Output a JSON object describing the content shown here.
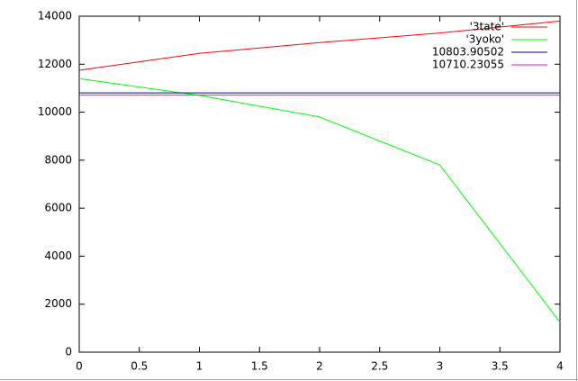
{
  "chart_data": {
    "type": "line",
    "series": [
      {
        "name": "'3tate'",
        "color": "#ff0000",
        "x": [
          0,
          1,
          2,
          3,
          4
        ],
        "values": [
          11750,
          12450,
          12900,
          13300,
          13800
        ]
      },
      {
        "name": "'3yoko'",
        "color": "#00ff00",
        "x": [
          0,
          1,
          2,
          3,
          4
        ],
        "values": [
          11400,
          10700,
          9800,
          7800,
          1250
        ]
      },
      {
        "name": "10803.90502",
        "color": "#0000a0",
        "x": [
          0,
          4
        ],
        "values": [
          10803.90502,
          10803.90502
        ]
      },
      {
        "name": "10710.23055",
        "color": "#ff00ff",
        "x": [
          0,
          4
        ],
        "values": [
          10710.23055,
          10710.23055
        ]
      }
    ],
    "xlim": [
      0,
      4
    ],
    "xticks": [
      0,
      0.5,
      1,
      1.5,
      2,
      2.5,
      3,
      3.5,
      4
    ],
    "ylim": [
      0,
      14000
    ],
    "yticks": [
      0,
      2000,
      4000,
      6000,
      8000,
      10000,
      12000,
      14000
    ],
    "legend": "top-right"
  }
}
